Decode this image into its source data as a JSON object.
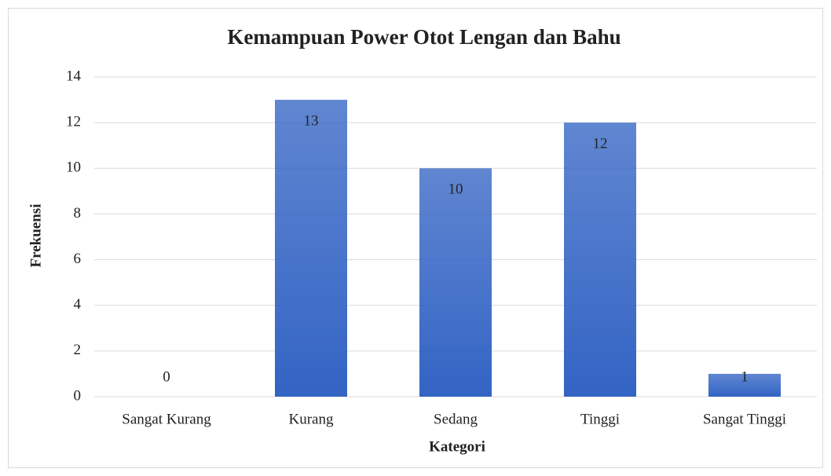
{
  "chart_data": {
    "type": "bar",
    "title": "Kemampuan Power Otot Lengan dan Bahu",
    "x_label": "Kategori",
    "y_label": "Frekuensi",
    "categories": [
      "Sangat Kurang",
      "Kurang",
      "Sedang",
      "Tinggi",
      "Sangat Tinggi"
    ],
    "values": [
      0,
      13,
      10,
      12,
      1
    ],
    "color": "#3364c4",
    "ylim": [
      0,
      14
    ],
    "yticks": [
      0,
      2,
      4,
      6,
      8,
      10,
      12,
      14
    ],
    "grid": true
  }
}
